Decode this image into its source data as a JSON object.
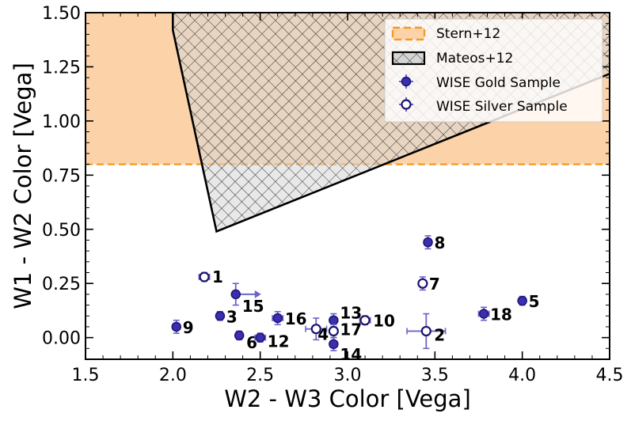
{
  "chart_data": {
    "type": "scatter",
    "xlabel": "W2 - W3 Color [Vega]",
    "ylabel": "W1 - W2 Color [Vega]",
    "xlim": [
      1.5,
      4.5
    ],
    "ylim": [
      -0.1,
      1.5
    ],
    "xticks": [
      1.5,
      2.0,
      2.5,
      3.0,
      3.5,
      4.0,
      4.5
    ],
    "xtick_labels": [
      "1.5",
      "2.0",
      "2.5",
      "3.0",
      "3.5",
      "4.0",
      "4.5"
    ],
    "yticks": [
      0.0,
      0.25,
      0.5,
      0.75,
      1.0,
      1.25,
      1.5
    ],
    "ytick_labels": [
      "0.00",
      "0.25",
      "0.50",
      "0.75",
      "1.00",
      "1.25",
      "1.50"
    ],
    "stern_threshold": 0.8,
    "mateos_polygon": [
      [
        2.0,
        1.42
      ],
      [
        2.25,
        0.49
      ],
      [
        4.6,
        1.25
      ],
      [
        4.6,
        1.62
      ],
      [
        2.0,
        1.62
      ]
    ],
    "colors": {
      "stern": "#f59a23",
      "stern_fill": "#fcd3a9",
      "mateos_fill": "#d5d5d5",
      "gold": "#3b2fb0",
      "errorbar": "#6b63cc"
    },
    "legend": {
      "location": "top-right",
      "entries": [
        "Stern+12",
        "Mateos+12",
        "WISE Gold Sample",
        "WISE Silver Sample"
      ]
    },
    "gold": [
      {
        "id": "3",
        "x": 2.27,
        "y": 0.1,
        "xerr": 0.02,
        "yerr": 0.02
      },
      {
        "id": "5",
        "x": 4.0,
        "y": 0.17,
        "xerr": 0.02,
        "yerr": 0.02
      },
      {
        "id": "6",
        "x": 2.38,
        "y": 0.01,
        "xerr": 0.02,
        "yerr": 0.02
      },
      {
        "id": "8",
        "x": 3.46,
        "y": 0.44,
        "xerr": 0.02,
        "yerr": 0.03
      },
      {
        "id": "9",
        "x": 2.02,
        "y": 0.05,
        "xerr": 0.02,
        "yerr": 0.03
      },
      {
        "id": "12",
        "x": 2.5,
        "y": 0.0,
        "xerr": 0.03,
        "yerr": 0.02
      },
      {
        "id": "13",
        "x": 2.92,
        "y": 0.08,
        "xerr": 0.02,
        "yerr": 0.03
      },
      {
        "id": "14",
        "x": 2.92,
        "y": -0.03,
        "xerr": 0.02,
        "yerr": 0.03
      },
      {
        "id": "15",
        "x": 2.36,
        "y": 0.2,
        "xerr": 0.0,
        "yerr": 0.05,
        "xlim_arrow": true
      },
      {
        "id": "16",
        "x": 2.6,
        "y": 0.09,
        "xerr": 0.03,
        "yerr": 0.03
      },
      {
        "id": "18",
        "x": 3.78,
        "y": 0.11,
        "xerr": 0.03,
        "yerr": 0.03
      }
    ],
    "silver": [
      {
        "id": "1",
        "x": 2.18,
        "y": 0.28,
        "xerr": 0.03,
        "yerr": 0.02
      },
      {
        "id": "2",
        "x": 3.45,
        "y": 0.03,
        "xerr": 0.11,
        "yerr": 0.08
      },
      {
        "id": "4",
        "x": 2.82,
        "y": 0.04,
        "xerr": 0.06,
        "yerr": 0.05
      },
      {
        "id": "7",
        "x": 3.43,
        "y": 0.25,
        "xerr": 0.02,
        "yerr": 0.03
      },
      {
        "id": "10",
        "x": 3.1,
        "y": 0.08,
        "xerr": 0.03,
        "yerr": 0.02
      },
      {
        "id": "17",
        "x": 2.92,
        "y": 0.03,
        "xerr": 0.02,
        "yerr": 0.03
      }
    ]
  }
}
